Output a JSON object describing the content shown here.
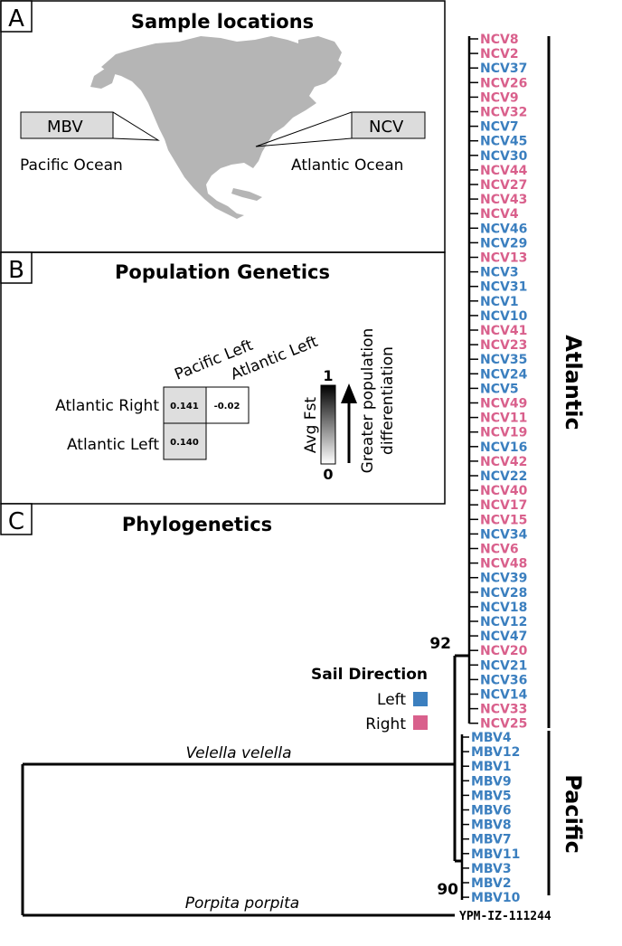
{
  "panel_a": {
    "letter": "A",
    "title": "Sample locations",
    "mbv_box": "MBV",
    "ncv_box": "NCV",
    "pacific_label": "Pacific Ocean",
    "atlantic_label": "Atlantic Ocean"
  },
  "panel_b": {
    "letter": "B",
    "title": "Population Genetics",
    "col_headers": [
      "Pacific Left",
      "Atlantic Left"
    ],
    "row_headers": [
      "Atlantic Right",
      "Atlantic Left"
    ],
    "cells": [
      "0.141",
      "-0.02",
      "0.140"
    ],
    "scale_max": "1",
    "scale_min": "0",
    "scale_label": "Avg Fst",
    "arrow_label_1": "Greater population",
    "arrow_label_2": "differentiation"
  },
  "panel_c": {
    "letter": "C",
    "title": "Phylogenetics",
    "legend_title": "Sail Direction",
    "legend_left": "Left",
    "legend_right": "Right",
    "velella": "Velella velella",
    "porpita": "Porpita porpita",
    "outgroup": "YPM-IZ-111244",
    "bootstrap_atlantic": "92",
    "bootstrap_pacific": "90",
    "clade_atlantic": "Atlantic",
    "clade_pacific": "Pacific"
  },
  "colors": {
    "left": "#3b7fbf",
    "right": "#d9608c",
    "map_land": "#b5b5b5"
  },
  "ncv_leaves": [
    {
      "name": "NCV8",
      "dir": "right"
    },
    {
      "name": "NCV2",
      "dir": "right"
    },
    {
      "name": "NCV37",
      "dir": "left"
    },
    {
      "name": "NCV26",
      "dir": "right"
    },
    {
      "name": "NCV9",
      "dir": "right"
    },
    {
      "name": "NCV32",
      "dir": "right"
    },
    {
      "name": "NCV7",
      "dir": "left"
    },
    {
      "name": "NCV45",
      "dir": "left"
    },
    {
      "name": "NCV30",
      "dir": "left"
    },
    {
      "name": "NCV44",
      "dir": "right"
    },
    {
      "name": "NCV27",
      "dir": "right"
    },
    {
      "name": "NCV43",
      "dir": "right"
    },
    {
      "name": "NCV4",
      "dir": "right"
    },
    {
      "name": "NCV46",
      "dir": "left"
    },
    {
      "name": "NCV29",
      "dir": "left"
    },
    {
      "name": "NCV13",
      "dir": "right"
    },
    {
      "name": "NCV3",
      "dir": "left"
    },
    {
      "name": "NCV31",
      "dir": "left"
    },
    {
      "name": "NCV1",
      "dir": "left"
    },
    {
      "name": "NCV10",
      "dir": "left"
    },
    {
      "name": "NCV41",
      "dir": "right"
    },
    {
      "name": "NCV23",
      "dir": "right"
    },
    {
      "name": "NCV35",
      "dir": "left"
    },
    {
      "name": "NCV24",
      "dir": "left"
    },
    {
      "name": "NCV5",
      "dir": "left"
    },
    {
      "name": "NCV49",
      "dir": "right"
    },
    {
      "name": "NCV11",
      "dir": "right"
    },
    {
      "name": "NCV19",
      "dir": "right"
    },
    {
      "name": "NCV16",
      "dir": "left"
    },
    {
      "name": "NCV42",
      "dir": "right"
    },
    {
      "name": "NCV22",
      "dir": "left"
    },
    {
      "name": "NCV40",
      "dir": "right"
    },
    {
      "name": "NCV17",
      "dir": "right"
    },
    {
      "name": "NCV15",
      "dir": "right"
    },
    {
      "name": "NCV34",
      "dir": "left"
    },
    {
      "name": "NCV6",
      "dir": "right"
    },
    {
      "name": "NCV48",
      "dir": "right"
    },
    {
      "name": "NCV39",
      "dir": "left"
    },
    {
      "name": "NCV28",
      "dir": "left"
    },
    {
      "name": "NCV18",
      "dir": "left"
    },
    {
      "name": "NCV12",
      "dir": "left"
    },
    {
      "name": "NCV47",
      "dir": "left"
    },
    {
      "name": "NCV20",
      "dir": "right"
    },
    {
      "name": "NCV21",
      "dir": "left"
    },
    {
      "name": "NCV36",
      "dir": "left"
    },
    {
      "name": "NCV14",
      "dir": "left"
    },
    {
      "name": "NCV33",
      "dir": "right"
    },
    {
      "name": "NCV25",
      "dir": "right"
    }
  ],
  "mbv_leaves": [
    {
      "name": "MBV4",
      "dir": "left"
    },
    {
      "name": "MBV12",
      "dir": "left"
    },
    {
      "name": "MBV1",
      "dir": "left"
    },
    {
      "name": "MBV9",
      "dir": "left"
    },
    {
      "name": "MBV5",
      "dir": "left"
    },
    {
      "name": "MBV6",
      "dir": "left"
    },
    {
      "name": "MBV8",
      "dir": "left"
    },
    {
      "name": "MBV7",
      "dir": "left"
    },
    {
      "name": "MBV11",
      "dir": "left"
    },
    {
      "name": "MBV3",
      "dir": "left"
    },
    {
      "name": "MBV2",
      "dir": "left"
    },
    {
      "name": "MBV10",
      "dir": "left"
    }
  ]
}
